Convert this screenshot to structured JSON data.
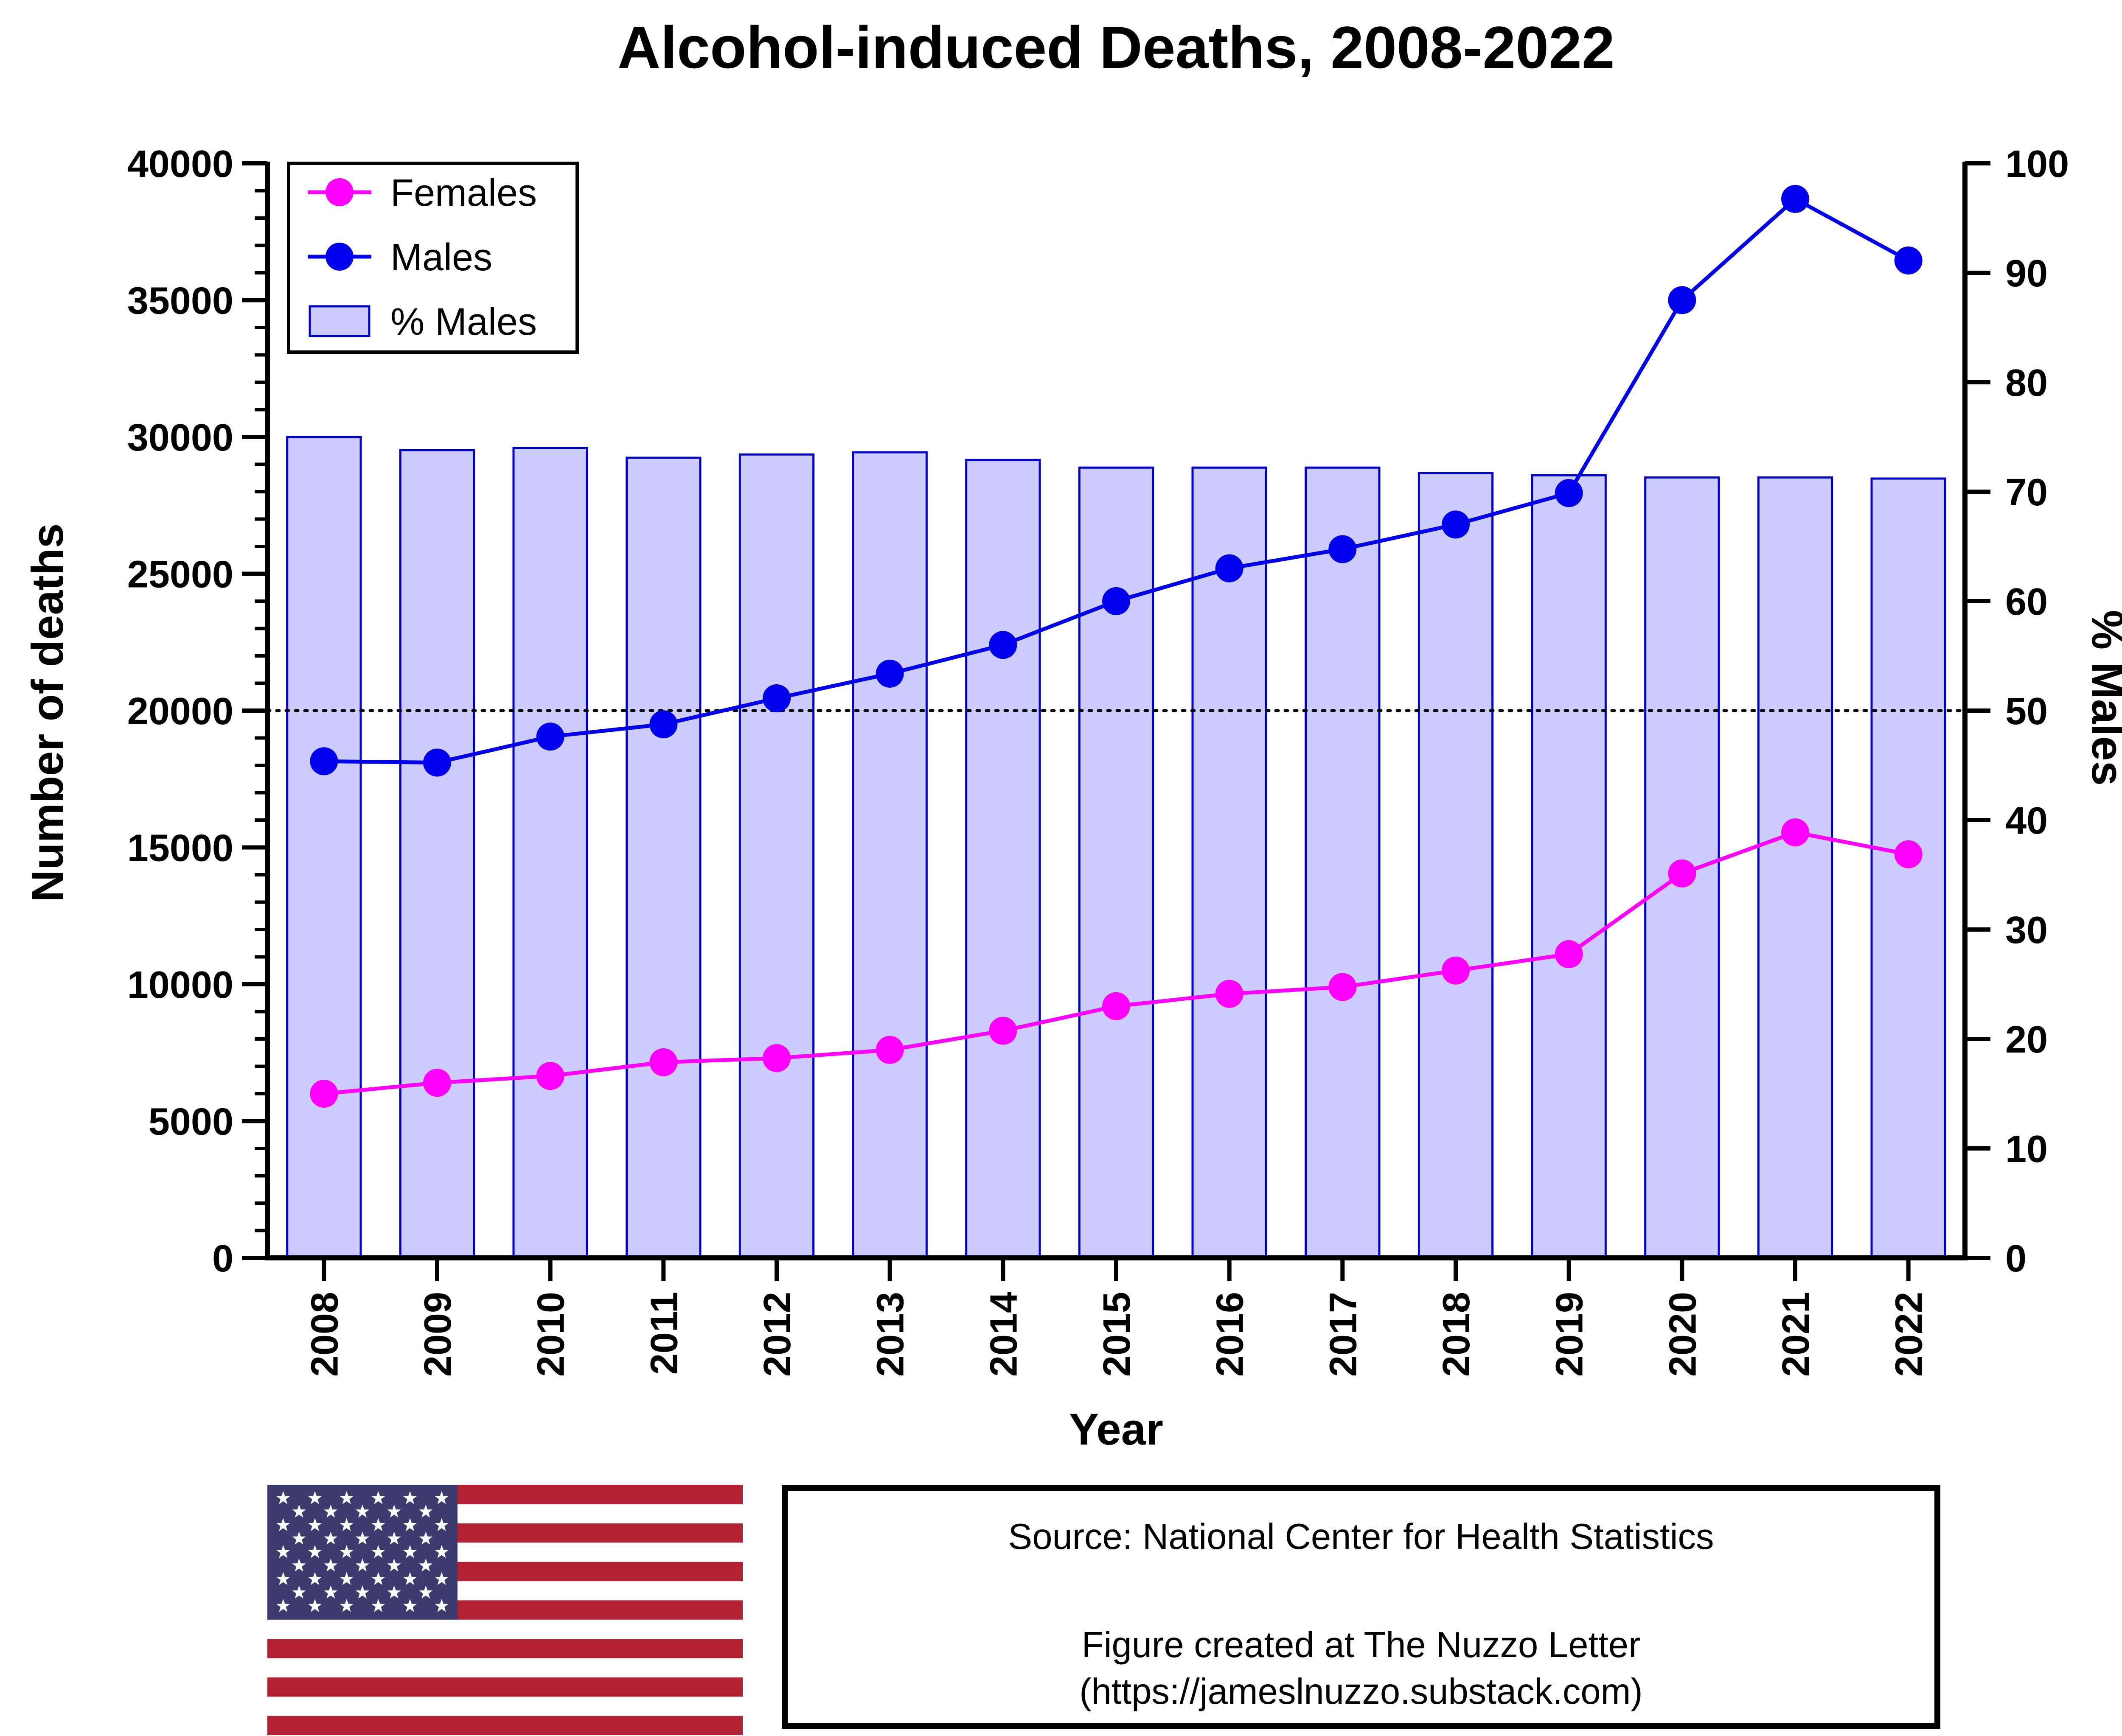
{
  "chart_data": {
    "type": "bar+line",
    "title": "Alcohol-induced Deaths, 2008-2022",
    "xlabel": "Year",
    "ylabel_left": "Number of deaths",
    "ylabel_right": "% Males",
    "ylim_left": [
      0,
      40000
    ],
    "ylim_right": [
      0,
      100
    ],
    "yticks_left": [
      "0",
      "5000",
      "10000",
      "15000",
      "20000",
      "25000",
      "30000",
      "35000",
      "40000"
    ],
    "yticks_right": [
      "0",
      "10",
      "20",
      "30",
      "40",
      "50",
      "60",
      "70",
      "80",
      "90",
      "100"
    ],
    "reference_line": {
      "axis": "right",
      "value": 50,
      "style": "dotted"
    },
    "categories": [
      "2008",
      "2009",
      "2010",
      "2011",
      "2012",
      "2013",
      "2014",
      "2015",
      "2016",
      "2017",
      "2018",
      "2019",
      "2020",
      "2021",
      "2022"
    ],
    "series": [
      {
        "name": "Females",
        "type": "line",
        "axis": "left",
        "color": "#ff00ff",
        "values": [
          6000,
          6400,
          6650,
          7150,
          7300,
          7600,
          8300,
          9200,
          9650,
          9900,
          10500,
          11100,
          14050,
          15550,
          14750
        ]
      },
      {
        "name": "Males",
        "type": "line",
        "axis": "left",
        "color": "#0000ee",
        "values": [
          18150,
          18100,
          19050,
          19500,
          20450,
          21350,
          22400,
          24000,
          25200,
          25900,
          26800,
          27950,
          35000,
          38700,
          36450
        ]
      },
      {
        "name": "% Males",
        "type": "bar",
        "axis": "right",
        "color": "#ccccff",
        "edge": "#0000cc",
        "values": [
          75.0,
          73.8,
          74.0,
          73.1,
          73.4,
          73.6,
          72.9,
          72.2,
          72.2,
          72.2,
          71.7,
          71.5,
          71.3,
          71.3,
          71.2
        ]
      }
    ],
    "legend": {
      "position": "top-left",
      "entries": [
        "Females",
        "Males",
        "% Males"
      ]
    }
  },
  "source": {
    "line1": "Source: National Center for Health Statistics",
    "line2": "Figure created at The Nuzzo Letter",
    "line3": "(https://jameslnuzzo.substack.com)"
  },
  "flag": {
    "name": "United States flag",
    "red": "#b22234",
    "blue": "#3c3b6e",
    "white": "#ffffff"
  }
}
